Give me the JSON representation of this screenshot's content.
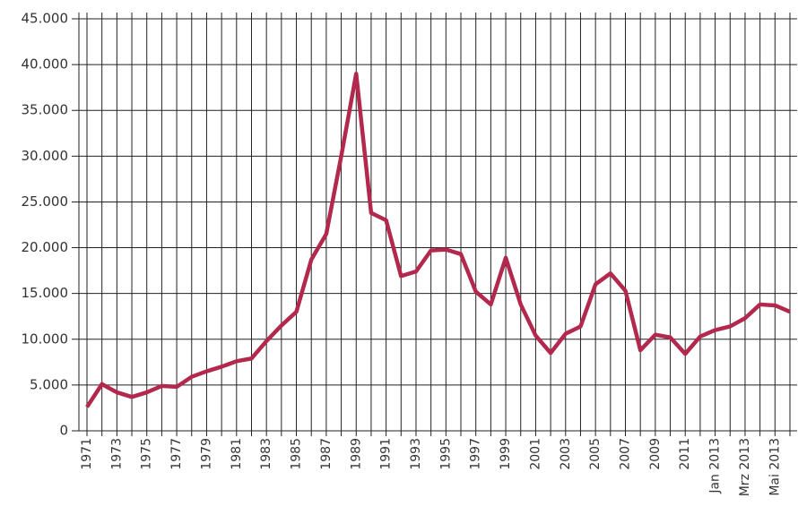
{
  "chart_data": {
    "type": "line",
    "categories": [
      "1971",
      null,
      "1973",
      null,
      "1975",
      null,
      "1977",
      null,
      "1979",
      null,
      "1981",
      null,
      "1983",
      null,
      "1985",
      null,
      "1987",
      null,
      "1989",
      null,
      "1991",
      null,
      "1993",
      null,
      "1995",
      null,
      "1997",
      null,
      "1999",
      null,
      "2001",
      null,
      "2003",
      null,
      "2005",
      null,
      "2007",
      null,
      "2009",
      null,
      "2011",
      null,
      "Jan 2013",
      null,
      "Mrz 2013",
      null,
      "Mai 2013",
      null
    ],
    "series": [
      {
        "color": "#b3284d",
        "values": [
          2600,
          5100,
          4200,
          3700,
          4200,
          4900,
          4800,
          5900,
          6500,
          7000,
          7600,
          7900,
          9800,
          11500,
          13000,
          18700,
          21500,
          30000,
          39000,
          23800,
          23000,
          16900,
          17400,
          19700,
          19800,
          19300,
          15200,
          13800,
          18900,
          13800,
          10400,
          8500,
          10600,
          11400,
          16000,
          17200,
          15300,
          8800,
          10500,
          10200,
          8400,
          10300,
          11000,
          11400,
          12300,
          13800,
          13700,
          13000
        ]
      }
    ],
    "ylim": [
      0,
      45000
    ],
    "yticks": [
      0,
      {
        "value": 5000,
        "label": "5.000"
      },
      {
        "value": 10000,
        "label": "10.000"
      },
      {
        "value": 15000,
        "label": "15.000"
      },
      {
        "value": 20000,
        "label": "20.000"
      },
      {
        "value": 25000,
        "label": "25.000"
      },
      {
        "value": 30000,
        "label": "30.000"
      },
      {
        "value": 35000,
        "label": "35.000"
      },
      {
        "value": 40000,
        "label": "40.000"
      },
      {
        "value": 45000,
        "label": "45.000"
      }
    ],
    "grid": true
  }
}
